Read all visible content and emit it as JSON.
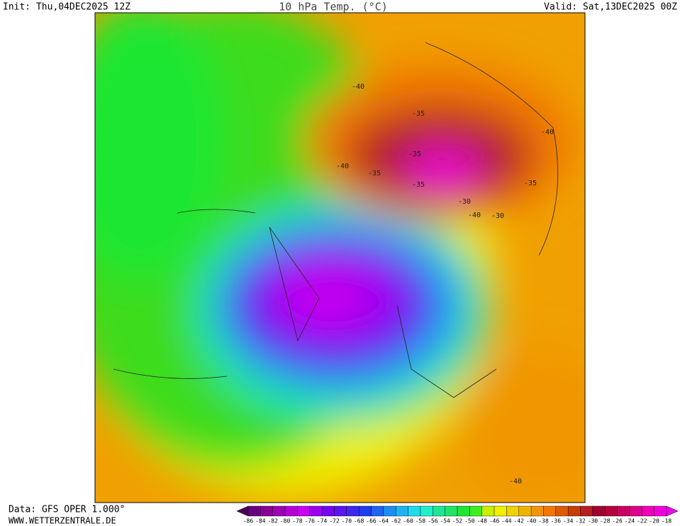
{
  "header": {
    "init": "Init: Thu,04DEC2025 12Z",
    "title": "10 hPa Temp. (°C)",
    "valid": "Valid: Sat,13DEC2025 00Z"
  },
  "footer": {
    "source": "Data: GFS OPER 1.000°",
    "website": "WWW.WETTERZENTRALE.DE"
  },
  "map": {
    "contour_labels": [
      "-40",
      "-35",
      "-35",
      "-40",
      "-35",
      "-35",
      "-30",
      "-40",
      "-30",
      "-40",
      "-35",
      "-40"
    ]
  },
  "colorbar": {
    "labels": [
      -86,
      -84,
      -82,
      -80,
      -78,
      -76,
      -74,
      -72,
      -70,
      -68,
      -66,
      -64,
      -62,
      -60,
      -58,
      -56,
      -54,
      -52,
      -50,
      -48,
      -46,
      -44,
      -42,
      -40,
      -38,
      -36,
      -34,
      -32,
      -30,
      -28,
      -26,
      -24,
      -22,
      -20,
      -18
    ],
    "colors": [
      "#4b0050",
      "#6a0080",
      "#8a0096",
      "#a000b4",
      "#b400d2",
      "#c800f0",
      "#9a00f0",
      "#7800f0",
      "#5a14f0",
      "#3c28f0",
      "#1e3cf0",
      "#1e64f0",
      "#1e8cf0",
      "#1eb4f0",
      "#1edcf0",
      "#1ef0c8",
      "#1ee696",
      "#1ee664",
      "#1ee632",
      "#3cf01e",
      "#c8f000",
      "#f0f000",
      "#f0d200",
      "#f0b400",
      "#f09600",
      "#f07800",
      "#dc5a00",
      "#c83c00",
      "#b41e1e",
      "#a00032",
      "#b4003c",
      "#c80064",
      "#dc008c",
      "#f000b4",
      "#f000dc",
      "#f000f0"
    ]
  }
}
